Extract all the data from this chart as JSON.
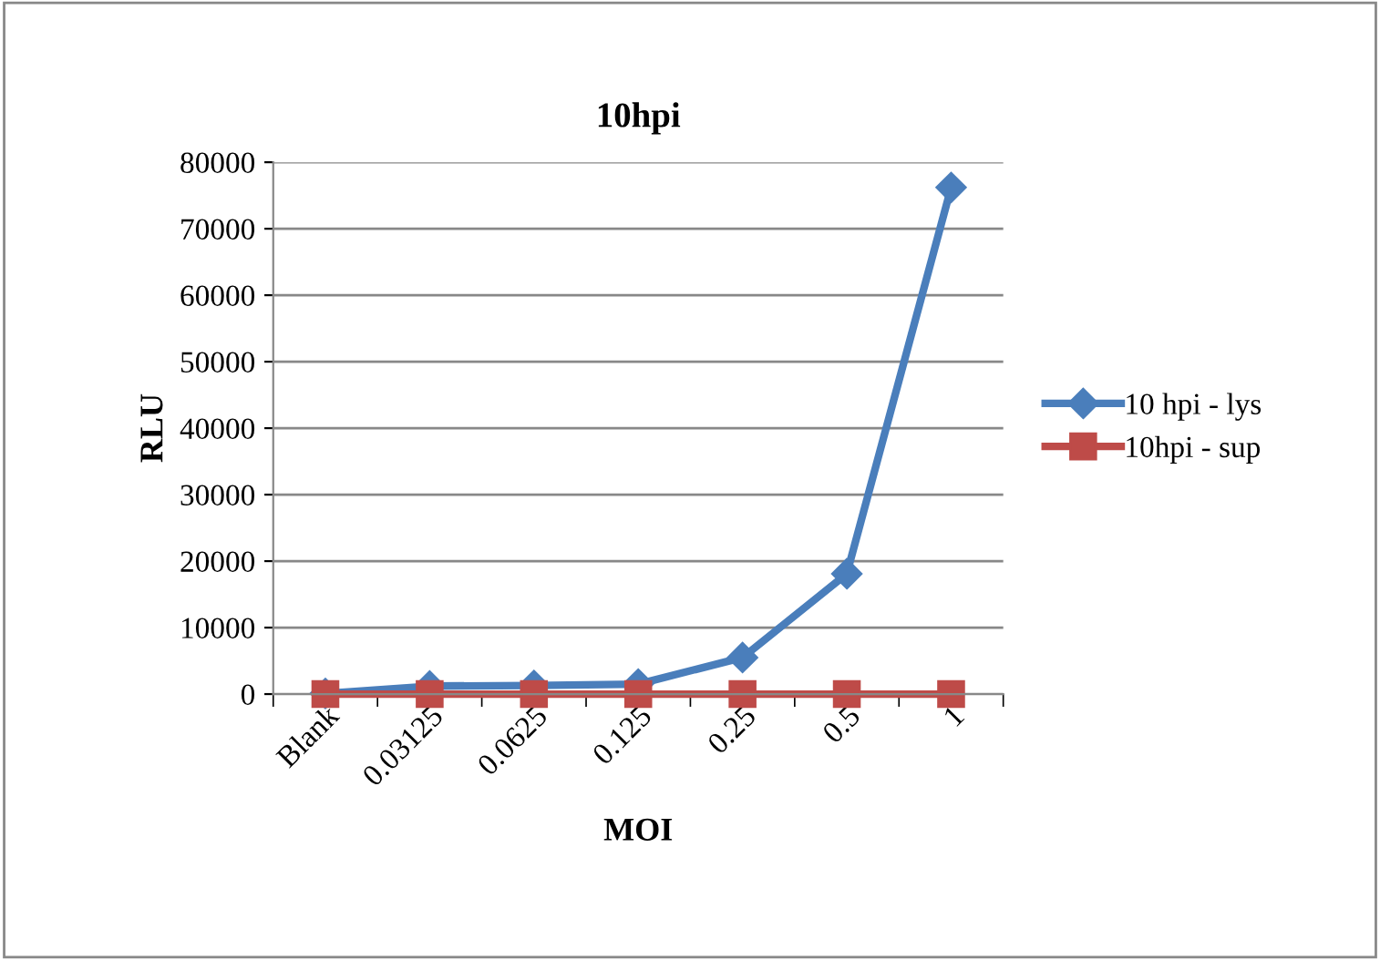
{
  "chart_data": {
    "type": "line",
    "title": "10hpi",
    "xlabel": "MOI",
    "ylabel": "RLU",
    "categories": [
      "Blank",
      "0.03125",
      "0.0625",
      "0.125",
      "0.25",
      "0.5",
      "1"
    ],
    "series": [
      {
        "name": "10 hpi - lys",
        "color": "#4a7ebb",
        "marker": "diamond",
        "values": [
          100,
          1200,
          1300,
          1500,
          5500,
          18100,
          76200
        ]
      },
      {
        "name": "10hpi - sup",
        "color": "#be4b48",
        "marker": "square",
        "values": [
          0,
          0,
          0,
          0,
          0,
          0,
          0
        ]
      }
    ],
    "ylim": [
      0,
      80000
    ],
    "yticks": [
      0,
      10000,
      20000,
      30000,
      40000,
      50000,
      60000,
      70000,
      80000
    ],
    "grid": "y",
    "legend": "right",
    "line_style": "solid"
  }
}
